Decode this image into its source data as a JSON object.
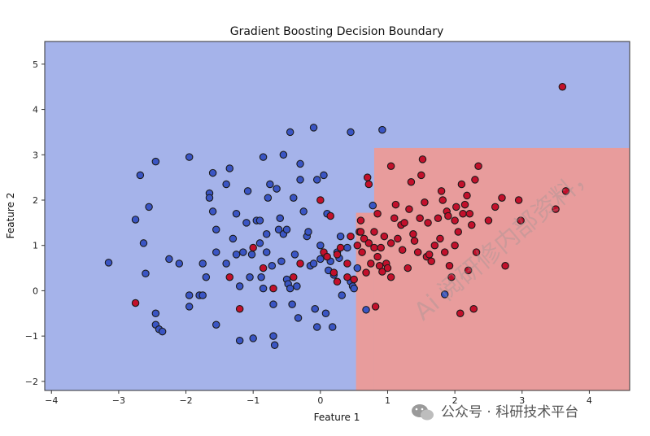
{
  "chart_data": {
    "type": "scatter",
    "title": "Gradient Boosting Decision Boundary",
    "xlabel": "Feature 1",
    "ylabel": "Feature 2",
    "xlim": [
      -4.1,
      4.6
    ],
    "ylim": [
      -2.2,
      5.5
    ],
    "xticks": [
      -4,
      -3,
      -2,
      -1,
      0,
      1,
      2,
      3,
      4
    ],
    "yticks": [
      -2,
      -1,
      0,
      1,
      2,
      3,
      4,
      5
    ],
    "grid": false,
    "region_colors": {
      "class_0": "#a5b3ea",
      "class_1": "#e89c9c"
    },
    "regions": [
      {
        "class": 1,
        "x": [
          0.53,
          0.8
        ],
        "y": [
          -2.2,
          1.72
        ]
      },
      {
        "class": 1,
        "x": [
          0.8,
          4.6
        ],
        "y": [
          -2.2,
          3.15
        ]
      }
    ],
    "series": [
      {
        "color": "#3a55c4",
        "points": [
          [
            -3.15,
            0.62
          ],
          [
            -2.75,
            1.57
          ],
          [
            -2.68,
            2.55
          ],
          [
            -2.63,
            1.05
          ],
          [
            -2.6,
            0.38
          ],
          [
            -2.55,
            1.85
          ],
          [
            -2.45,
            2.85
          ],
          [
            -2.45,
            -0.5
          ],
          [
            -2.45,
            -0.75
          ],
          [
            -2.4,
            -0.85
          ],
          [
            -2.35,
            -0.9
          ],
          [
            -2.25,
            0.7
          ],
          [
            -2.1,
            0.6
          ],
          [
            -1.95,
            2.95
          ],
          [
            -1.95,
            -0.1
          ],
          [
            -1.95,
            -0.35
          ],
          [
            -1.8,
            -0.1
          ],
          [
            -1.75,
            0.6
          ],
          [
            -1.75,
            -0.1
          ],
          [
            -1.7,
            0.3
          ],
          [
            -1.65,
            2.15
          ],
          [
            -1.65,
            2.05
          ],
          [
            -1.6,
            2.6
          ],
          [
            -1.6,
            1.75
          ],
          [
            -1.55,
            1.35
          ],
          [
            -1.55,
            0.85
          ],
          [
            -1.55,
            -0.75
          ],
          [
            -1.4,
            2.35
          ],
          [
            -1.4,
            0.6
          ],
          [
            -1.35,
            2.7
          ],
          [
            -1.3,
            1.15
          ],
          [
            -1.25,
            1.7
          ],
          [
            -1.25,
            0.8
          ],
          [
            -1.2,
            0.1
          ],
          [
            -1.2,
            -1.1
          ],
          [
            -1.15,
            0.85
          ],
          [
            -1.1,
            1.5
          ],
          [
            -1.08,
            2.2
          ],
          [
            -1.05,
            0.3
          ],
          [
            -1.02,
            0.8
          ],
          [
            -1.0,
            -1.05
          ],
          [
            -0.95,
            1.55
          ],
          [
            -0.9,
            1.55
          ],
          [
            -0.9,
            1.05
          ],
          [
            -0.88,
            0.3
          ],
          [
            -0.85,
            2.95
          ],
          [
            -0.85,
            0.05
          ],
          [
            -0.8,
            1.25
          ],
          [
            -0.8,
            0.85
          ],
          [
            -0.78,
            2.05
          ],
          [
            -0.75,
            2.35
          ],
          [
            -0.72,
            0.55
          ],
          [
            -0.7,
            -0.3
          ],
          [
            -0.7,
            -1.0
          ],
          [
            -0.68,
            -1.2
          ],
          [
            -0.65,
            2.25
          ],
          [
            -0.62,
            1.35
          ],
          [
            -0.6,
            1.6
          ],
          [
            -0.58,
            0.65
          ],
          [
            -0.55,
            3.0
          ],
          [
            -0.55,
            1.25
          ],
          [
            -0.5,
            1.35
          ],
          [
            -0.5,
            0.25
          ],
          [
            -0.48,
            0.15
          ],
          [
            -0.45,
            3.5
          ],
          [
            -0.45,
            0.05
          ],
          [
            -0.42,
            -0.3
          ],
          [
            -0.4,
            2.05
          ],
          [
            -0.38,
            0.8
          ],
          [
            -0.35,
            0.1
          ],
          [
            -0.33,
            -0.6
          ],
          [
            -0.3,
            2.8
          ],
          [
            -0.3,
            2.45
          ],
          [
            -0.25,
            1.75
          ],
          [
            -0.2,
            1.2
          ],
          [
            -0.18,
            1.3
          ],
          [
            -0.15,
            0.55
          ],
          [
            -0.1,
            3.6
          ],
          [
            -0.1,
            0.6
          ],
          [
            -0.08,
            -0.4
          ],
          [
            -0.05,
            -0.8
          ],
          [
            -0.05,
            2.45
          ],
          [
            0.0,
            1.0
          ],
          [
            0.0,
            0.7
          ],
          [
            0.05,
            2.55
          ],
          [
            0.08,
            -0.5
          ],
          [
            0.1,
            1.7
          ],
          [
            0.12,
            0.45
          ],
          [
            0.15,
            0.65
          ],
          [
            0.18,
            -0.8
          ],
          [
            0.2,
            0.35
          ],
          [
            0.25,
            0.85
          ],
          [
            0.28,
            0.72
          ],
          [
            0.3,
            1.2
          ],
          [
            0.32,
            -0.1
          ],
          [
            0.4,
            0.95
          ],
          [
            0.45,
            0.2
          ],
          [
            0.45,
            3.5
          ],
          [
            0.48,
            0.1
          ],
          [
            0.5,
            0.05
          ],
          [
            0.55,
            0.5
          ],
          [
            0.68,
            -0.42
          ],
          [
            0.78,
            1.88
          ],
          [
            0.92,
            3.55
          ],
          [
            1.85,
            -0.08
          ]
        ]
      },
      {
        "color": "#c3102b",
        "points": [
          [
            -2.75,
            -0.27
          ],
          [
            -1.35,
            0.3
          ],
          [
            -1.2,
            -0.4
          ],
          [
            -1.0,
            0.95
          ],
          [
            -0.85,
            0.5
          ],
          [
            -0.7,
            0.05
          ],
          [
            -0.4,
            0.3
          ],
          [
            -0.3,
            0.6
          ],
          [
            0.0,
            2.0
          ],
          [
            0.15,
            1.65
          ],
          [
            0.2,
            0.4
          ],
          [
            0.05,
            0.85
          ],
          [
            0.1,
            0.75
          ],
          [
            0.25,
            0.8
          ],
          [
            0.25,
            0.2
          ],
          [
            0.3,
            0.95
          ],
          [
            0.4,
            0.3
          ],
          [
            0.4,
            0.6
          ],
          [
            0.45,
            1.2
          ],
          [
            0.5,
            0.25
          ],
          [
            0.55,
            1.0
          ],
          [
            0.58,
            1.3
          ],
          [
            0.6,
            1.55
          ],
          [
            0.6,
            1.3
          ],
          [
            0.62,
            0.85
          ],
          [
            0.65,
            1.15
          ],
          [
            0.68,
            0.4
          ],
          [
            0.7,
            2.5
          ],
          [
            0.72,
            2.35
          ],
          [
            0.72,
            1.05
          ],
          [
            0.75,
            0.6
          ],
          [
            0.8,
            1.3
          ],
          [
            0.8,
            0.95
          ],
          [
            0.82,
            -0.35
          ],
          [
            0.85,
            1.7
          ],
          [
            0.85,
            0.75
          ],
          [
            0.88,
            0.55
          ],
          [
            0.9,
            0.95
          ],
          [
            0.92,
            0.42
          ],
          [
            0.95,
            1.2
          ],
          [
            0.98,
            0.6
          ],
          [
            1.0,
            0.5
          ],
          [
            1.05,
            2.75
          ],
          [
            1.05,
            1.05
          ],
          [
            1.05,
            0.3
          ],
          [
            1.1,
            1.6
          ],
          [
            1.12,
            1.9
          ],
          [
            1.15,
            1.15
          ],
          [
            1.2,
            1.45
          ],
          [
            1.22,
            0.9
          ],
          [
            1.25,
            1.5
          ],
          [
            1.3,
            0.5
          ],
          [
            1.32,
            1.8
          ],
          [
            1.35,
            2.4
          ],
          [
            1.38,
            1.25
          ],
          [
            1.4,
            1.1
          ],
          [
            1.45,
            0.85
          ],
          [
            1.48,
            1.6
          ],
          [
            1.5,
            2.55
          ],
          [
            1.52,
            2.9
          ],
          [
            1.55,
            1.95
          ],
          [
            1.58,
            0.75
          ],
          [
            1.6,
            1.5
          ],
          [
            1.62,
            0.8
          ],
          [
            1.65,
            0.65
          ],
          [
            1.7,
            1.0
          ],
          [
            1.75,
            1.6
          ],
          [
            1.78,
            1.15
          ],
          [
            1.8,
            2.2
          ],
          [
            1.82,
            2.0
          ],
          [
            1.85,
            0.85
          ],
          [
            1.88,
            1.75
          ],
          [
            1.9,
            1.65
          ],
          [
            1.92,
            0.55
          ],
          [
            1.95,
            0.3
          ],
          [
            2.0,
            1.55
          ],
          [
            2.0,
            1.0
          ],
          [
            2.02,
            1.85
          ],
          [
            2.05,
            1.3
          ],
          [
            2.08,
            -0.5
          ],
          [
            2.1,
            2.35
          ],
          [
            2.12,
            1.7
          ],
          [
            2.15,
            1.9
          ],
          [
            2.18,
            2.1
          ],
          [
            2.2,
            0.45
          ],
          [
            2.22,
            1.7
          ],
          [
            2.25,
            1.45
          ],
          [
            2.28,
            -0.4
          ],
          [
            2.3,
            2.45
          ],
          [
            2.32,
            0.85
          ],
          [
            2.35,
            2.75
          ],
          [
            2.5,
            1.55
          ],
          [
            2.6,
            1.85
          ],
          [
            2.7,
            2.05
          ],
          [
            2.75,
            0.55
          ],
          [
            2.95,
            2.0
          ],
          [
            2.98,
            1.55
          ],
          [
            3.5,
            1.8
          ],
          [
            3.6,
            4.5
          ],
          [
            3.65,
            2.2
          ]
        ]
      }
    ]
  },
  "overlay": {
    "watermark": "Ai 阅研修内部资料，",
    "footer": "公众号 · 科研技术平台",
    "footer_icon": "wechat-icon"
  }
}
